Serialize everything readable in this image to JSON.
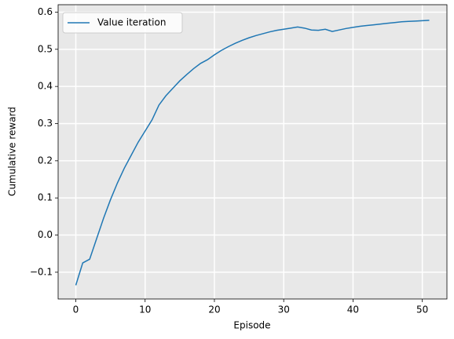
{
  "chart_data": {
    "type": "line",
    "xlabel": "Episode",
    "ylabel": "Cumulative reward",
    "x": [
      0,
      1,
      2,
      3,
      4,
      5,
      6,
      7,
      8,
      9,
      10,
      11,
      12,
      13,
      14,
      15,
      16,
      17,
      18,
      19,
      20,
      21,
      22,
      23,
      24,
      25,
      26,
      27,
      28,
      29,
      30,
      31,
      32,
      33,
      34,
      35,
      36,
      37,
      38,
      39,
      40,
      41,
      42,
      43,
      44,
      45,
      46,
      47,
      48,
      49,
      50,
      51
    ],
    "series": [
      {
        "name": "Value iteration",
        "color": "#1f77b4",
        "values": [
          -0.135,
          -0.075,
          -0.065,
          -0.01,
          0.045,
          0.095,
          0.14,
          0.18,
          0.215,
          0.25,
          0.28,
          0.31,
          0.35,
          0.375,
          0.395,
          0.415,
          0.432,
          0.448,
          0.462,
          0.472,
          0.485,
          0.497,
          0.507,
          0.516,
          0.524,
          0.531,
          0.537,
          0.542,
          0.547,
          0.551,
          0.554,
          0.557,
          0.56,
          0.557,
          0.552,
          0.551,
          0.554,
          0.548,
          0.552,
          0.556,
          0.559,
          0.562,
          0.564,
          0.566,
          0.568,
          0.57,
          0.572,
          0.574,
          0.575,
          0.576,
          0.577,
          0.578
        ]
      }
    ],
    "xlim": [
      -2.55,
      53.55
    ],
    "xticks": [
      0,
      10,
      20,
      30,
      40,
      50
    ],
    "ylim": [
      -0.172,
      0.62
    ],
    "yticks": [
      {
        "value": -0.1,
        "label": "−0.1"
      },
      {
        "value": 0,
        "label": "0.0"
      },
      0.1,
      0.2,
      0.3,
      0.4,
      0.5,
      0.6
    ],
    "grid": true,
    "legend": "upper left"
  }
}
